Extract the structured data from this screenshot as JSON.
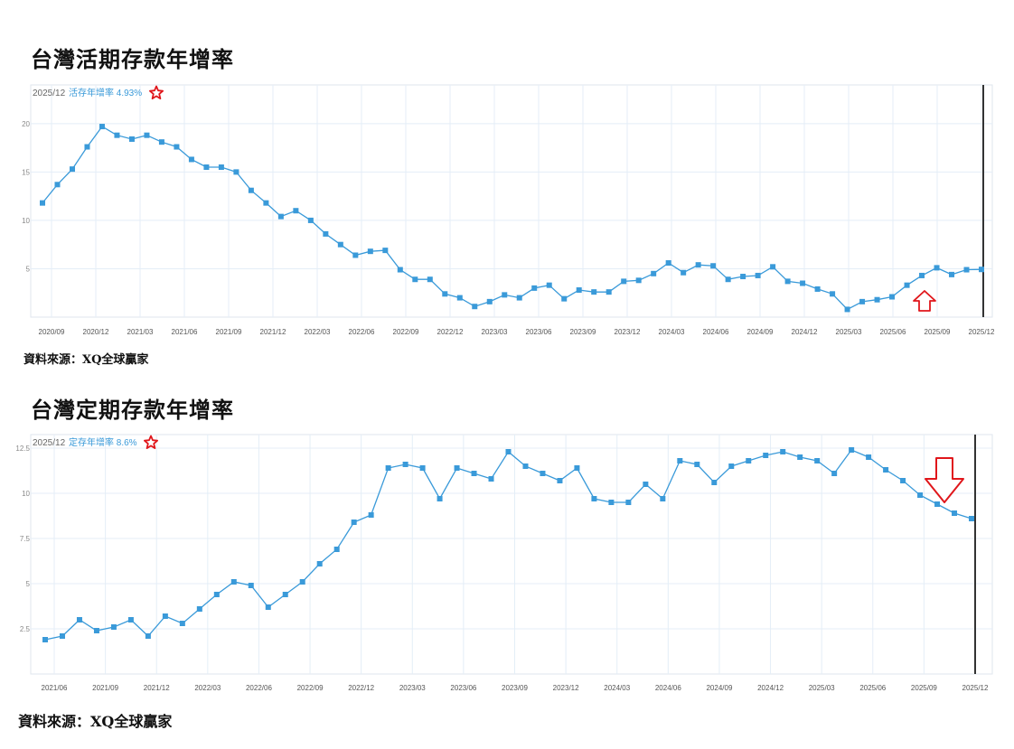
{
  "chart1_title": "台灣活期存款年增率",
  "chart2_title": "台灣定期存款年增率",
  "source_text": "資料來源：XQ全球贏家",
  "colors": {
    "line": "#3a9ad9",
    "star": "#e0161b",
    "arrow": "#e0161b",
    "grid": "#e4eef7"
  },
  "chart_data": [
    {
      "type": "line",
      "title": "台灣活期存款年增率",
      "header_date": "2025/12",
      "header_label": "活存年增率 4.93%",
      "y_ticks": [
        5,
        10,
        15,
        20
      ],
      "ylim": [
        0,
        24
      ],
      "x_tick_labels": [
        "2020/09",
        "2020/12",
        "2021/03",
        "2021/06",
        "2021/09",
        "2021/12",
        "2022/03",
        "2022/06",
        "2022/09",
        "2022/12",
        "2023/03",
        "2023/06",
        "2023/09",
        "2023/12",
        "2024/03",
        "2024/06",
        "2024/09",
        "2024/12",
        "2025/03",
        "2025/06",
        "2025/09",
        "2025/12"
      ],
      "annotation": "up-arrow near 2025/06",
      "series": [
        {
          "values": [
            11.8,
            13.7,
            15.3,
            17.6,
            19.7,
            18.8,
            18.4,
            18.8,
            18.1,
            17.6,
            16.3,
            15.5,
            15.5,
            15.0,
            13.1,
            11.8,
            10.4,
            11.0,
            10.0,
            8.6,
            7.5,
            6.4,
            6.8,
            6.9,
            4.9,
            3.9,
            3.9,
            2.4,
            2.0,
            1.1,
            1.6,
            2.3,
            2.0,
            3.0,
            3.3,
            1.9,
            2.8,
            2.6,
            2.6,
            3.7,
            3.8,
            4.5,
            5.6,
            4.6,
            5.4,
            5.3,
            3.9,
            4.2,
            4.3,
            5.2,
            3.7,
            3.5,
            2.9,
            2.4,
            0.8,
            1.6,
            1.8,
            2.1,
            3.3,
            4.3,
            5.1,
            4.4,
            4.9,
            4.93
          ]
        }
      ]
    },
    {
      "type": "line",
      "title": "台灣定期存款年增率",
      "header_date": "2025/12",
      "header_label": "定存年增率 8.6%",
      "y_ticks": [
        2.5,
        5,
        7.5,
        10,
        12.5
      ],
      "ylim": [
        0,
        13.75
      ],
      "x_tick_labels": [
        "2021/06",
        "2021/09",
        "2021/12",
        "2022/03",
        "2022/06",
        "2022/09",
        "2022/12",
        "2023/03",
        "2023/06",
        "2023/09",
        "2023/12",
        "2024/03",
        "2024/06",
        "2024/09",
        "2024/12",
        "2025/03",
        "2025/06",
        "2025/09",
        "2025/12"
      ],
      "annotation": "down-arrow near 2025/09",
      "series": [
        {
          "values": [
            1.9,
            2.1,
            3.0,
            2.4,
            2.6,
            3.0,
            2.1,
            3.2,
            2.8,
            3.6,
            4.4,
            5.1,
            4.9,
            3.7,
            4.4,
            5.1,
            6.1,
            6.9,
            8.4,
            8.8,
            11.4,
            11.6,
            11.4,
            9.7,
            11.4,
            11.1,
            10.8,
            12.3,
            11.5,
            11.1,
            10.7,
            11.4,
            9.7,
            9.5,
            9.5,
            10.5,
            9.7,
            11.8,
            11.6,
            10.6,
            11.5,
            11.8,
            12.1,
            12.3,
            12.0,
            11.8,
            11.1,
            12.4,
            12.0,
            11.3,
            10.7,
            9.9,
            9.4,
            8.9,
            8.6
          ]
        }
      ]
    }
  ]
}
